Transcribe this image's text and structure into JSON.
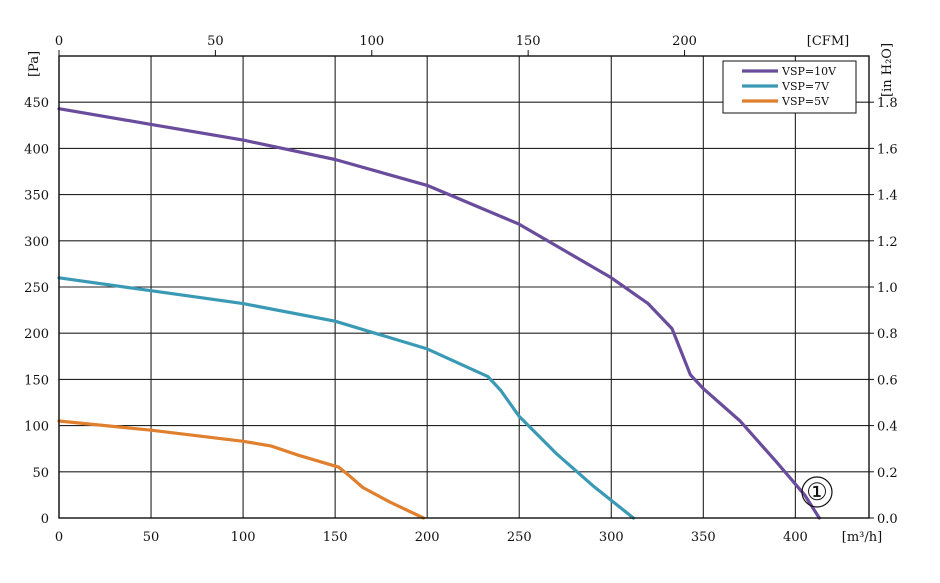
{
  "chart_data": {
    "type": "line",
    "title": "",
    "xlabel": "[m³/h]",
    "ylabel": "[Pa]",
    "xlim": [
      0,
      440
    ],
    "ylim": [
      0,
      500
    ],
    "x_ticks": [
      "0",
      "50",
      "100",
      "150",
      "200",
      "250",
      "300",
      "350",
      "400"
    ],
    "y_ticks": [
      "0",
      "50",
      "100",
      "150",
      "200",
      "250",
      "300",
      "350",
      "400",
      "450"
    ],
    "top_axis": {
      "label": "[CFM]",
      "ticks": [
        "0",
        "50",
        "100",
        "150",
        "200"
      ],
      "tick_values": [
        0,
        50,
        100,
        150,
        200
      ],
      "m3h_per_unit": 1.699
    },
    "right_axis": {
      "label": "[in H₂O]",
      "ticks": [
        "0.0",
        "0.2",
        "0.4",
        "0.6",
        "0.8",
        "1.0",
        "1.2",
        "1.4",
        "1.6",
        "1.8"
      ],
      "tick_values": [
        0,
        0.2,
        0.4,
        0.6,
        0.8,
        1.0,
        1.2,
        1.4,
        1.6,
        1.8
      ],
      "pa_per_unit": 250
    },
    "grid": true,
    "legend": "top-right",
    "series": [
      {
        "name": "VSP=10V",
        "color": "#6a4c9c",
        "points": [
          [
            0,
            443
          ],
          [
            50,
            426
          ],
          [
            100,
            409
          ],
          [
            150,
            388
          ],
          [
            200,
            360
          ],
          [
            250,
            318
          ],
          [
            300,
            260
          ],
          [
            320,
            232
          ],
          [
            333,
            205
          ],
          [
            338,
            180
          ],
          [
            343,
            155
          ],
          [
            350,
            140
          ],
          [
            370,
            105
          ],
          [
            390,
            60
          ],
          [
            405,
            25
          ],
          [
            413,
            0
          ]
        ]
      },
      {
        "name": "VSP=7V",
        "color": "#3a9ab5",
        "points": [
          [
            0,
            260
          ],
          [
            50,
            246
          ],
          [
            100,
            232
          ],
          [
            150,
            213
          ],
          [
            200,
            183
          ],
          [
            233,
            153
          ],
          [
            240,
            138
          ],
          [
            250,
            110
          ],
          [
            270,
            70
          ],
          [
            290,
            35
          ],
          [
            312,
            0
          ]
        ]
      },
      {
        "name": "VSP=5V",
        "color": "#e07f2d",
        "points": [
          [
            0,
            105
          ],
          [
            50,
            95
          ],
          [
            100,
            83
          ],
          [
            115,
            78
          ],
          [
            130,
            68
          ],
          [
            152,
            55
          ],
          [
            157,
            47
          ],
          [
            165,
            33
          ],
          [
            180,
            17
          ],
          [
            198,
            0
          ]
        ]
      }
    ],
    "annotations": [
      "①"
    ]
  }
}
